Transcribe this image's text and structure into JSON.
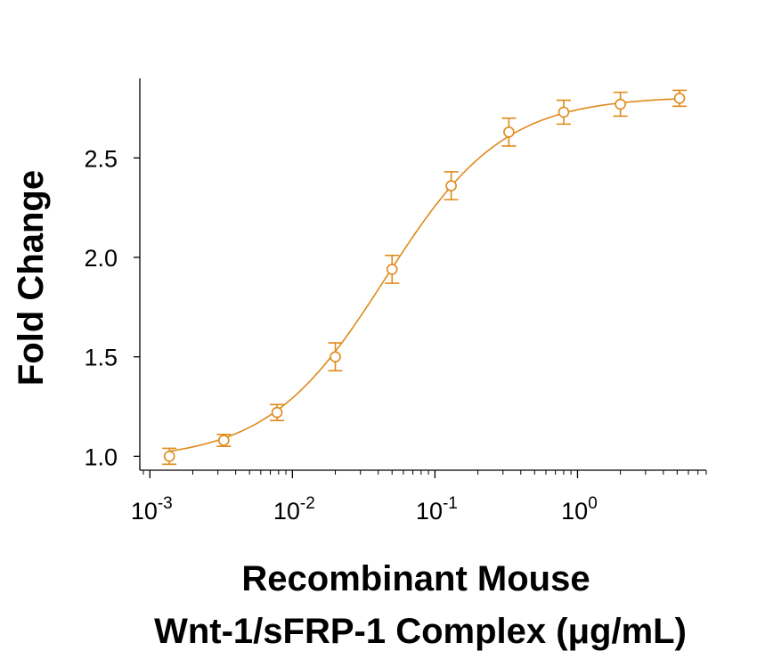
{
  "chart_data": {
    "type": "scatter",
    "xscale": "log",
    "xlabel_line1": "Recombinant Mouse",
    "xlabel_line2": "Wnt-1/sFRP-1 Complex (μg/mL)",
    "ylabel": "Fold Change",
    "xlim": [
      0.00085,
      8
    ],
    "ylim": [
      0.93,
      2.9
    ],
    "yticks": [
      {
        "value": 1.0,
        "label": "1.0"
      },
      {
        "value": 1.5,
        "label": "1.5"
      },
      {
        "value": 2.0,
        "label": "2.0"
      },
      {
        "value": 2.5,
        "label": "2.5"
      }
    ],
    "xticks": [
      {
        "value": 0.001,
        "base": "10",
        "exp": "-3"
      },
      {
        "value": 0.01,
        "base": "10",
        "exp": "-2"
      },
      {
        "value": 0.1,
        "base": "10",
        "exp": "-1"
      },
      {
        "value": 1,
        "base": "10",
        "exp": "0"
      }
    ],
    "color": "#E08A1A",
    "grid": false,
    "series": [
      {
        "x": [
          0.00137,
          0.0033,
          0.0078,
          0.02,
          0.05,
          0.13,
          0.33,
          0.8,
          2.0,
          5.2
        ],
        "y": [
          1.0,
          1.08,
          1.22,
          1.5,
          1.94,
          2.36,
          2.63,
          2.73,
          2.77,
          2.8
        ],
        "error": [
          0.04,
          0.03,
          0.04,
          0.07,
          0.07,
          0.07,
          0.07,
          0.06,
          0.06,
          0.04
        ]
      }
    ],
    "fit": {
      "model": "4PL",
      "bottom": 0.98,
      "top": 2.81,
      "ec50": 0.045,
      "hill": 1.05
    }
  }
}
